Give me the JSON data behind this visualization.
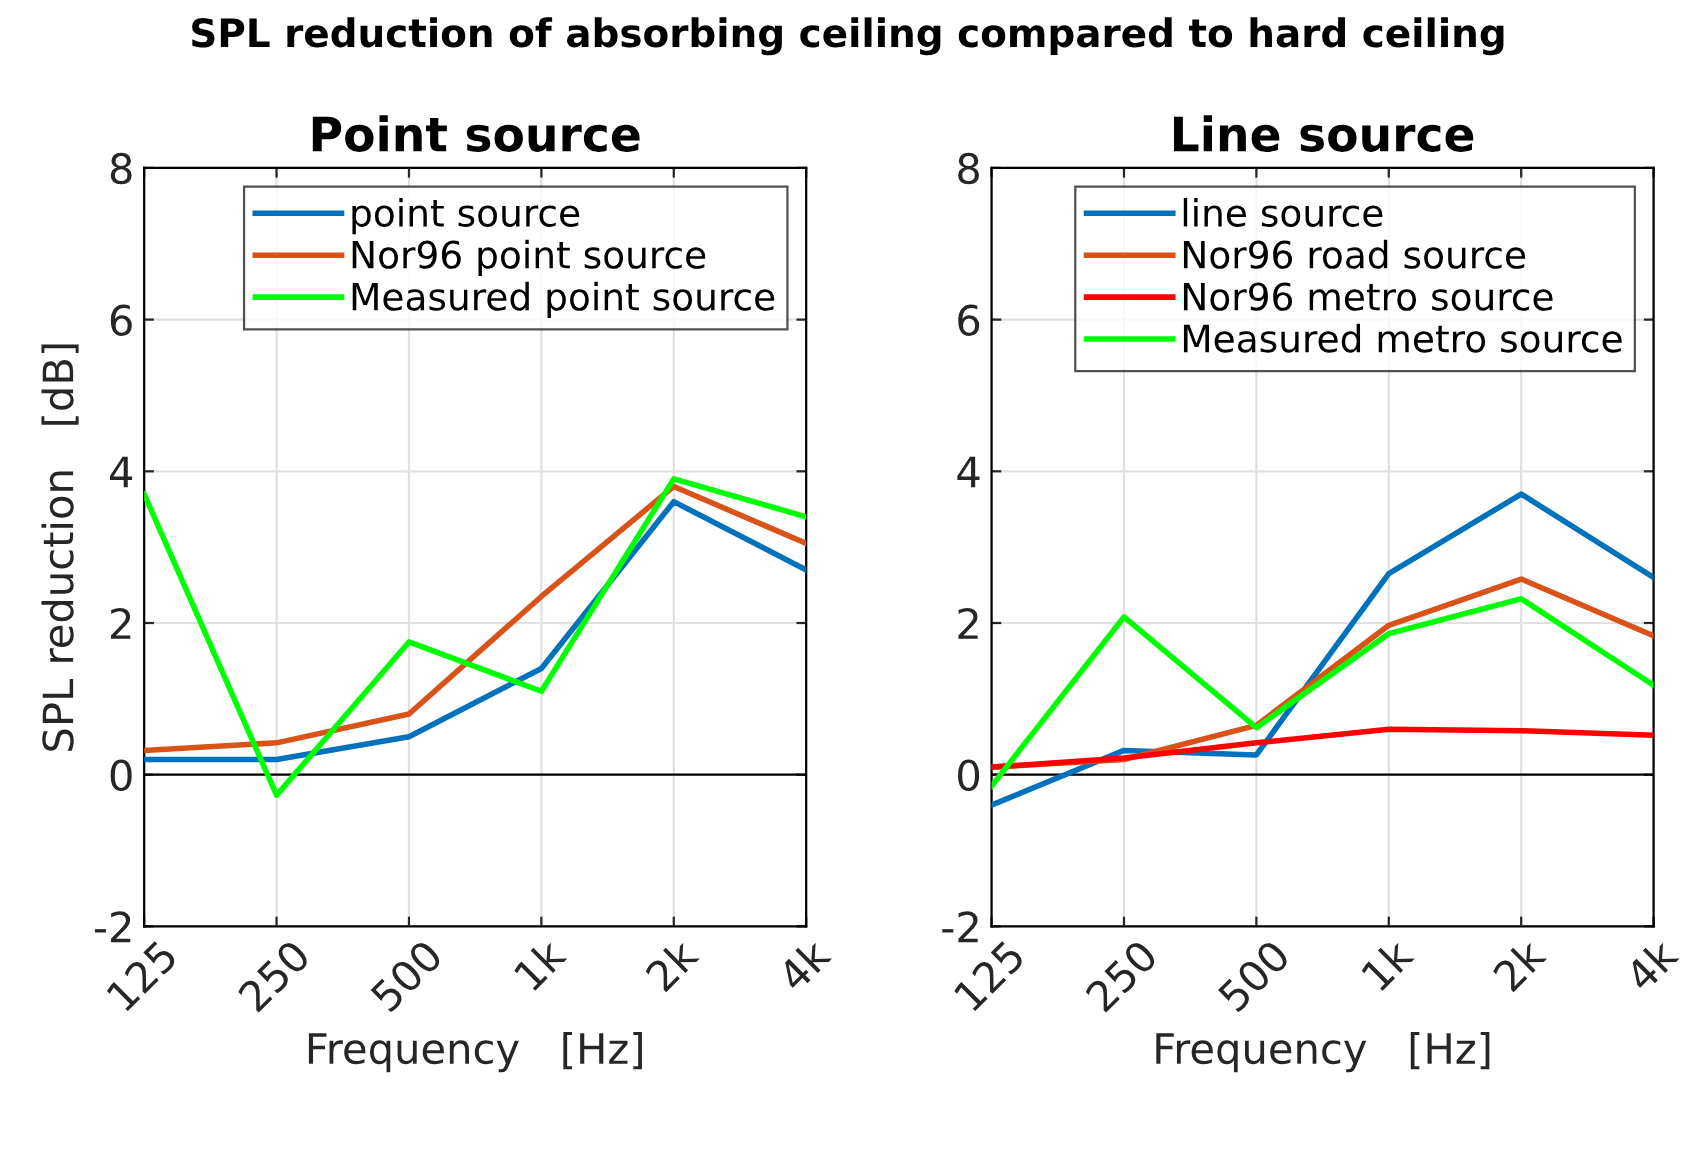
{
  "chart_data": [
    {
      "type": "line",
      "title": "Point source",
      "annotations": [
        "SPL reduction of absorbing ceiling compared to hard ceiling"
      ],
      "xlabel": "Frequency   [Hz]",
      "ylabel": "SPL reduction   [dB]",
      "categories": [
        "125",
        "250",
        "500",
        "1k",
        "2k",
        "4k"
      ],
      "ylim": [
        -2,
        8
      ],
      "yticks": [
        -2,
        0,
        2,
        4,
        6,
        8
      ],
      "grid": true,
      "legend": "top right",
      "ref_lines": [
        {
          "axis": "y",
          "value": 0,
          "color": "#000000"
        }
      ],
      "series": [
        {
          "name": "point source",
          "color": "#0072bd",
          "values": [
            0.2,
            0.2,
            0.5,
            1.4,
            3.6,
            2.7
          ]
        },
        {
          "name": "Nor96 point source",
          "color": "#d95319",
          "values": [
            0.32,
            0.42,
            0.8,
            2.35,
            3.8,
            3.05
          ]
        },
        {
          "name": "Measured point source",
          "color": "#00ff00",
          "values": [
            3.7,
            -0.27,
            1.75,
            1.1,
            3.9,
            3.4
          ]
        }
      ]
    },
    {
      "type": "line",
      "title": "Line source",
      "xlabel": "Frequency   [Hz]",
      "categories": [
        "125",
        "250",
        "500",
        "1k",
        "2k",
        "4k"
      ],
      "ylim": [
        -2,
        8
      ],
      "yticks": [
        -2,
        0,
        2,
        4,
        6,
        8
      ],
      "grid": true,
      "legend": "top right",
      "ref_lines": [
        {
          "axis": "y",
          "value": 0,
          "color": "#000000"
        }
      ],
      "series": [
        {
          "name": "line source",
          "color": "#0072bd",
          "values": [
            -0.4,
            0.32,
            0.26,
            2.65,
            3.7,
            2.6
          ]
        },
        {
          "name": "Nor96 road source",
          "color": "#d95319",
          "values": [
            0.1,
            0.2,
            0.65,
            1.97,
            2.58,
            1.83
          ]
        },
        {
          "name": "Nor96 metro source",
          "color": "#ff0000",
          "values": [
            0.1,
            0.22,
            0.42,
            0.6,
            0.58,
            0.52
          ]
        },
        {
          "name": "Measured metro source",
          "color": "#00ff00",
          "values": [
            -0.15,
            2.08,
            0.62,
            1.86,
            2.32,
            1.18
          ]
        }
      ]
    }
  ]
}
